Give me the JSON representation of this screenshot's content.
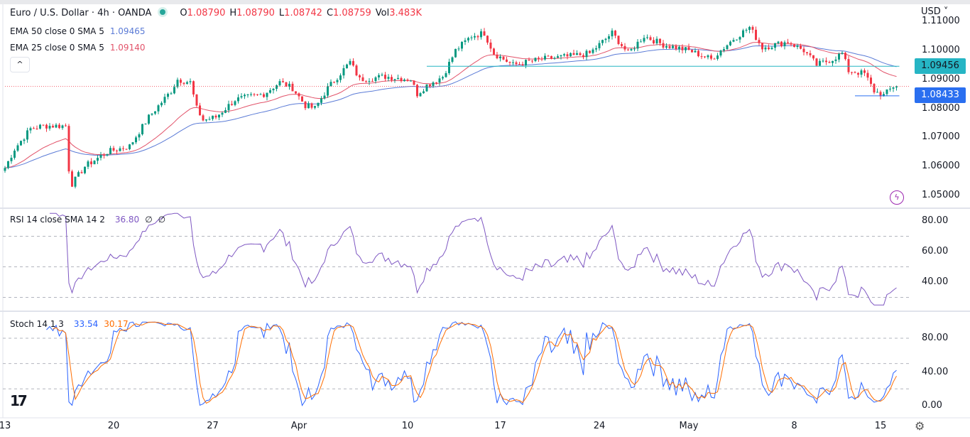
{
  "header": {
    "symbol": "Euro / U.S. Dollar · 4h · OANDA",
    "ohlc": {
      "o_label": "O",
      "o": "1.08790",
      "h_label": "H",
      "h": "1.08790",
      "l_label": "L",
      "l": "1.08742",
      "c_label": "C",
      "c": "1.08759",
      "vol_label": "Vol",
      "vol": "3.483K"
    },
    "ema50": {
      "label": "EMA 50 close 0 SMA 5",
      "value": "1.09465"
    },
    "ema25": {
      "label": "EMA 25 close 0 SMA 5",
      "value": "1.09140"
    },
    "collapse_icon": "^"
  },
  "currency": "USD",
  "rsi": {
    "label": "RSI 14 close SMA 14 2",
    "value": "36.80",
    "extra1": "∅",
    "extra2": "∅"
  },
  "stoch": {
    "label": "Stoch 14 1 3",
    "k": "33.54",
    "d": "30.17"
  },
  "colors": {
    "up": "#089981",
    "down": "#f23645",
    "ema50": "#5b7bd6",
    "ema25": "#e2536a",
    "rsi": "#7e57c2",
    "stoch_k": "#2962ff",
    "stoch_d": "#ff6d00",
    "support": "#2a6ff0",
    "resistance": "#26b5c4"
  },
  "price_tags": {
    "resistance": "1.09456",
    "support": "1.08433"
  },
  "chart_data": {
    "type": "candlestick",
    "title": "Euro / U.S. Dollar · 4h · OANDA",
    "bars": 280,
    "close_waypoints": [
      [
        0,
        1.0595
      ],
      [
        3,
        1.066
      ],
      [
        8,
        1.073
      ],
      [
        12,
        1.074
      ],
      [
        19,
        1.074
      ],
      [
        20,
        1.059
      ],
      [
        21,
        1.054
      ],
      [
        25,
        1.06
      ],
      [
        32,
        1.065
      ],
      [
        39,
        1.067
      ],
      [
        45,
        1.077
      ],
      [
        52,
        1.086
      ],
      [
        54,
        1.09
      ],
      [
        58,
        1.089
      ],
      [
        60,
        1.08
      ],
      [
        62,
        1.076
      ],
      [
        66,
        1.077
      ],
      [
        72,
        1.083
      ],
      [
        81,
        1.085
      ],
      [
        86,
        1.089
      ],
      [
        90,
        1.087
      ],
      [
        94,
        1.081
      ],
      [
        97,
        1.08
      ],
      [
        101,
        1.087
      ],
      [
        108,
        1.096
      ],
      [
        111,
        1.09
      ],
      [
        119,
        1.091
      ],
      [
        127,
        1.09
      ],
      [
        129,
        1.085
      ],
      [
        132,
        1.088
      ],
      [
        137,
        1.091
      ],
      [
        141,
        1.1
      ],
      [
        146,
        1.105
      ],
      [
        150,
        1.106
      ],
      [
        153,
        1.099
      ],
      [
        159,
        1.095
      ],
      [
        168,
        1.097
      ],
      [
        177,
        1.098
      ],
      [
        183,
        1.099
      ],
      [
        190,
        1.106
      ],
      [
        195,
        1.099
      ],
      [
        200,
        1.105
      ],
      [
        206,
        1.102
      ],
      [
        214,
        1.1
      ],
      [
        221,
        1.097
      ],
      [
        228,
        1.104
      ],
      [
        233,
        1.108
      ],
      [
        237,
        1.101
      ],
      [
        241,
        1.102
      ],
      [
        245,
        1.103
      ],
      [
        250,
        1.1
      ],
      [
        254,
        1.095
      ],
      [
        259,
        1.097
      ],
      [
        262,
        1.099
      ],
      [
        264,
        1.093
      ],
      [
        269,
        1.092
      ],
      [
        272,
        1.086
      ],
      [
        275,
        1.0845
      ],
      [
        278,
        1.0876
      ],
      [
        279,
        1.08759
      ]
    ],
    "y_ticks": [
      "1.11000",
      "1.10000",
      "1.09000",
      "1.08000",
      "1.07000",
      "1.06000",
      "1.05000"
    ],
    "y_range": [
      1.047,
      1.1115
    ],
    "x_ticks": [
      {
        "bar": 0,
        "label": "13"
      },
      {
        "bar": 34,
        "label": "20"
      },
      {
        "bar": 65,
        "label": "27"
      },
      {
        "bar": 92,
        "label": "Apr"
      },
      {
        "bar": 126,
        "label": "10"
      },
      {
        "bar": 155,
        "label": "17"
      },
      {
        "bar": 186,
        "label": "24"
      },
      {
        "bar": 214,
        "label": "May"
      },
      {
        "bar": 247,
        "label": "8"
      },
      {
        "bar": 274,
        "label": "15"
      }
    ],
    "hlines": [
      {
        "name": "resistance",
        "price": 1.09456,
        "from_bar": 132
      },
      {
        "name": "support",
        "price": 1.08433,
        "from_bar": 266
      },
      {
        "name": "last-price",
        "price": 1.08759,
        "from_bar": 0
      }
    ],
    "rsi_ticks": [
      "80.00",
      "60.00",
      "40.00"
    ],
    "rsi_bands": [
      70,
      50,
      30
    ],
    "stoch_ticks": [
      "80.00",
      "40.00",
      "0.00"
    ],
    "stoch_bands": [
      80,
      50,
      20
    ]
  }
}
